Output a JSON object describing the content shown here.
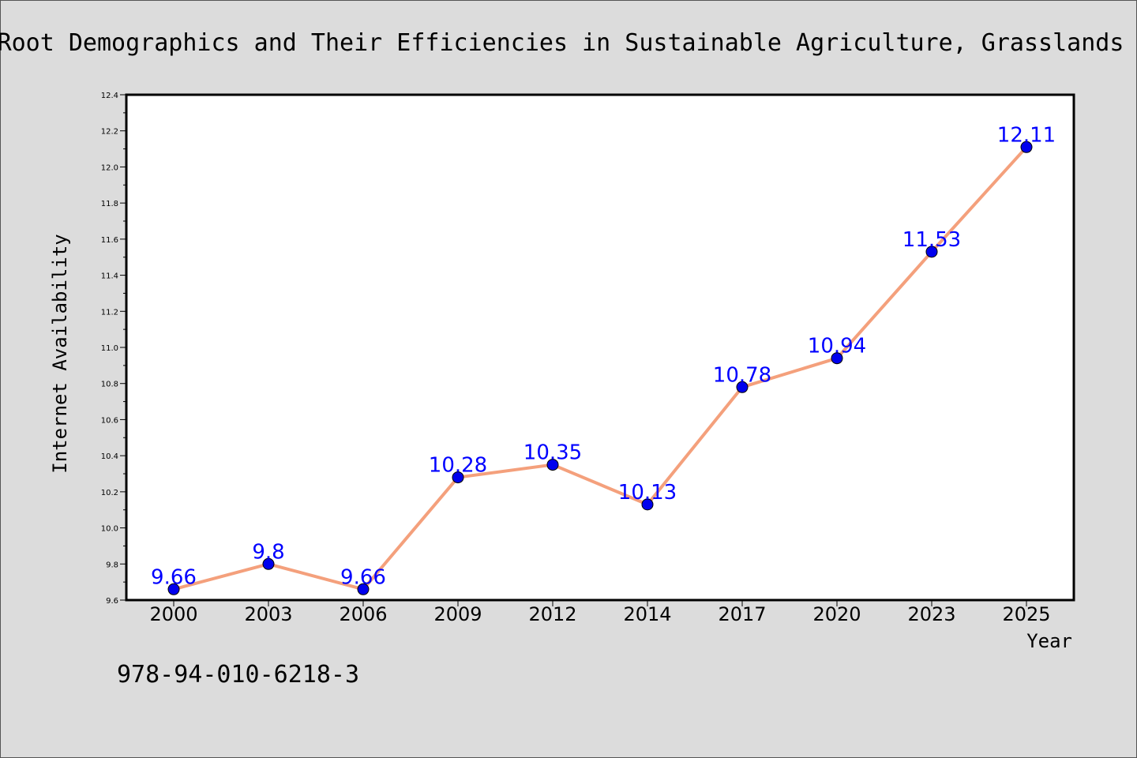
{
  "chart_data": {
    "type": "line",
    "title": "Root Demographics and Their Efficiencies in Sustainable Agriculture, Grasslands",
    "xlabel": "Year",
    "ylabel": "Internet Availability",
    "categories": [
      "2000",
      "2003",
      "2006",
      "2009",
      "2012",
      "2014",
      "2017",
      "2020",
      "2023",
      "2025"
    ],
    "values": [
      9.66,
      9.8,
      9.66,
      10.28,
      10.35,
      10.13,
      10.78,
      10.94,
      11.53,
      12.11
    ],
    "data_labels": [
      "9.66",
      "9.8",
      "9.66",
      "10.28",
      "10.35",
      "10.13",
      "10.78",
      "10.94",
      "11.53",
      "12.11"
    ],
    "ylim": [
      9.6,
      12.4
    ],
    "yticks": [
      "9.6",
      "9.8",
      "10.0",
      "10.2",
      "10.4",
      "10.6",
      "10.8",
      "11.0",
      "11.2",
      "11.4",
      "11.6",
      "11.8",
      "12.0",
      "12.2",
      "12.4"
    ],
    "grid": false,
    "line_color": "#f4a07c",
    "marker_color": "#0000ee",
    "label_color": "#0000ff",
    "background_color": "#dcdcdc",
    "plot_background_color": "#ffffff"
  },
  "annotation": {
    "isbn": "978-94-010-6218-3"
  }
}
